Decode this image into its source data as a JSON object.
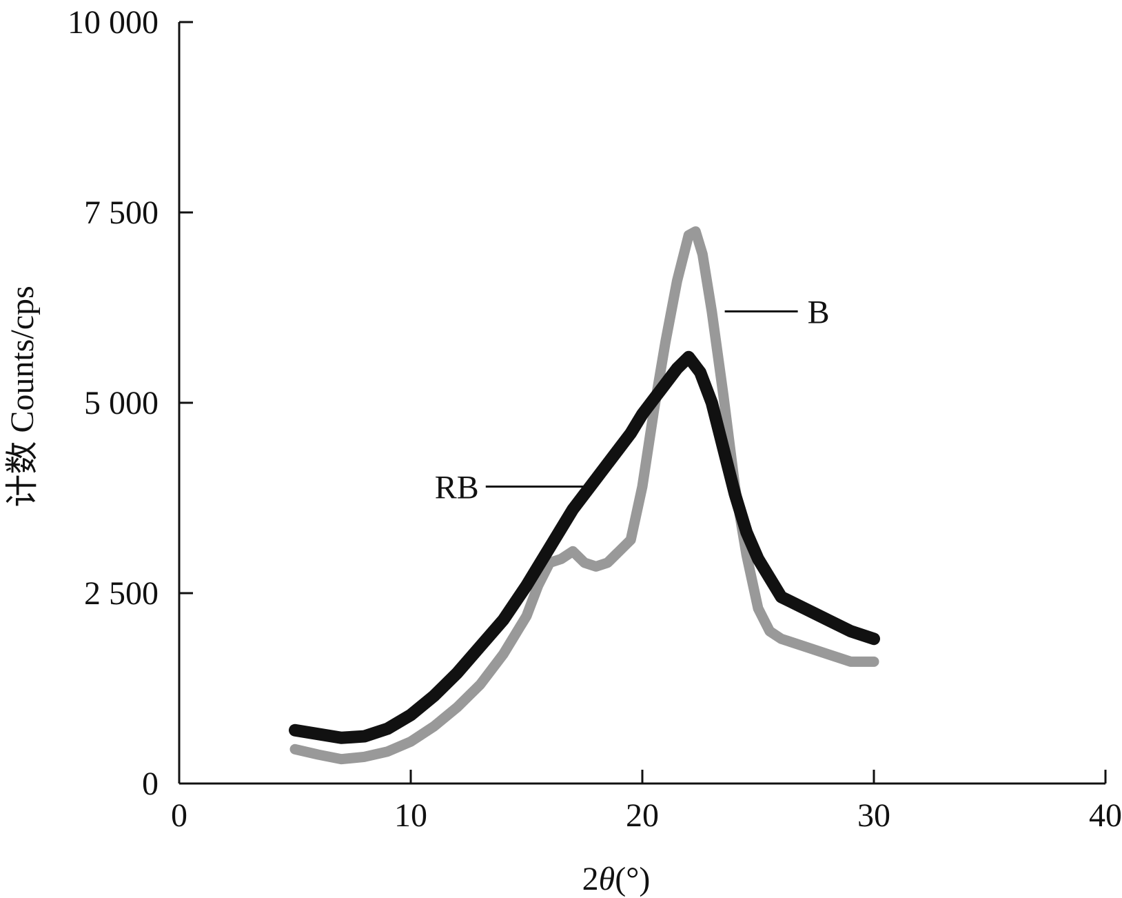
{
  "chart_data": {
    "type": "line",
    "xlabel": {
      "prefix": "2",
      "symbol": "θ",
      "unit": "(°)"
    },
    "ylabel": "计数 Counts/cps",
    "xlim": [
      0,
      40
    ],
    "ylim": [
      0,
      10000
    ],
    "x_ticks": [
      0,
      10,
      20,
      30,
      40
    ],
    "x_tick_labels": [
      "0",
      "10",
      "20",
      "30",
      "40"
    ],
    "y_ticks": [
      0,
      2500,
      5000,
      7500,
      10000
    ],
    "y_tick_labels": [
      "0",
      "2 500",
      "5 000",
      "7 500",
      "10 000"
    ],
    "grid": false,
    "series": [
      {
        "name": "B",
        "color": "#999999",
        "x": [
          5,
          6,
          7,
          8,
          9,
          10,
          11,
          12,
          13,
          14,
          15,
          15.5,
          16,
          16.5,
          17,
          17.5,
          18,
          18.5,
          19,
          19.5,
          20,
          20.5,
          21,
          21.5,
          22,
          22.3,
          22.6,
          23,
          23.5,
          24,
          24.5,
          25,
          25.5,
          26,
          27,
          28,
          29,
          30
        ],
        "y": [
          450,
          380,
          320,
          350,
          420,
          550,
          750,
          1000,
          1300,
          1700,
          2200,
          2600,
          2900,
          2950,
          3050,
          2900,
          2850,
          2900,
          3050,
          3200,
          3900,
          4900,
          5800,
          6600,
          7200,
          7250,
          6950,
          6200,
          5100,
          3900,
          3000,
          2300,
          2000,
          1900,
          1800,
          1700,
          1600,
          1600
        ]
      },
      {
        "name": "RB",
        "color": "#111111",
        "x": [
          5,
          6,
          7,
          8,
          9,
          10,
          11,
          12,
          13,
          14,
          15,
          16,
          17,
          18,
          19,
          19.5,
          20,
          20.5,
          21,
          21.5,
          22,
          22.5,
          23,
          23.5,
          24,
          24.5,
          25,
          25.5,
          26,
          27,
          28,
          29,
          30
        ],
        "y": [
          700,
          650,
          600,
          620,
          720,
          900,
          1150,
          1450,
          1800,
          2150,
          2600,
          3100,
          3600,
          4000,
          4400,
          4600,
          4850,
          5050,
          5250,
          5450,
          5600,
          5400,
          5000,
          4400,
          3800,
          3300,
          2950,
          2700,
          2450,
          2300,
          2150,
          2000,
          1900
        ]
      }
    ]
  }
}
